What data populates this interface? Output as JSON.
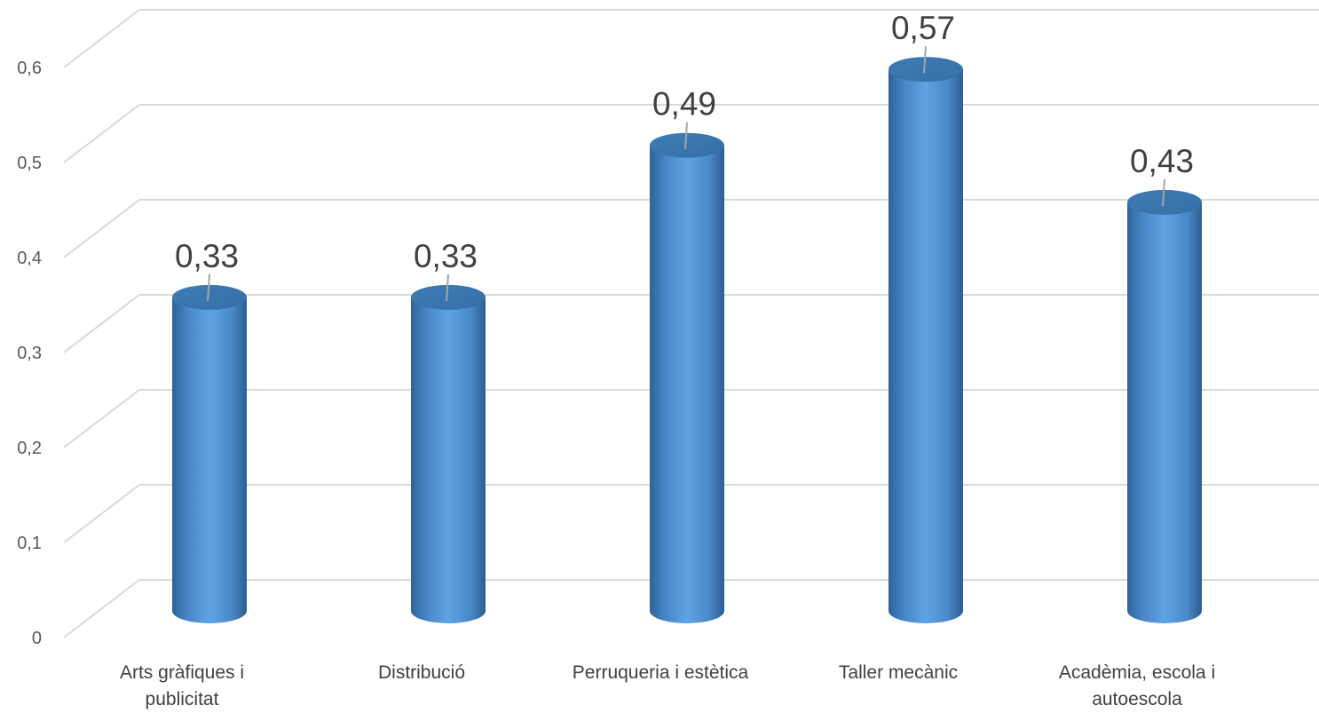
{
  "chart_data": {
    "type": "bar",
    "style": "3d-cylinder",
    "categories": [
      [
        "Arts gràfiques i",
        "publicitat"
      ],
      [
        "Distribució"
      ],
      [
        "Perruqueria i estètica"
      ],
      [
        "Taller mecànic"
      ],
      [
        "Acadèmia, escola i",
        "autoescola"
      ]
    ],
    "values": [
      0.33,
      0.33,
      0.49,
      0.57,
      0.43
    ],
    "value_labels": [
      "0,33",
      "0,33",
      "0,49",
      "0,57",
      "0,43"
    ],
    "y_ticks": [
      "0",
      "0,1",
      "0,2",
      "0,3",
      "0,4",
      "0,5",
      "0,6"
    ],
    "ylim": [
      0,
      0.6
    ],
    "grid": true,
    "legend": "none",
    "colors": {
      "bar": "#5b9bd5",
      "grid": "#d9d9d9",
      "text": "#404040"
    }
  }
}
